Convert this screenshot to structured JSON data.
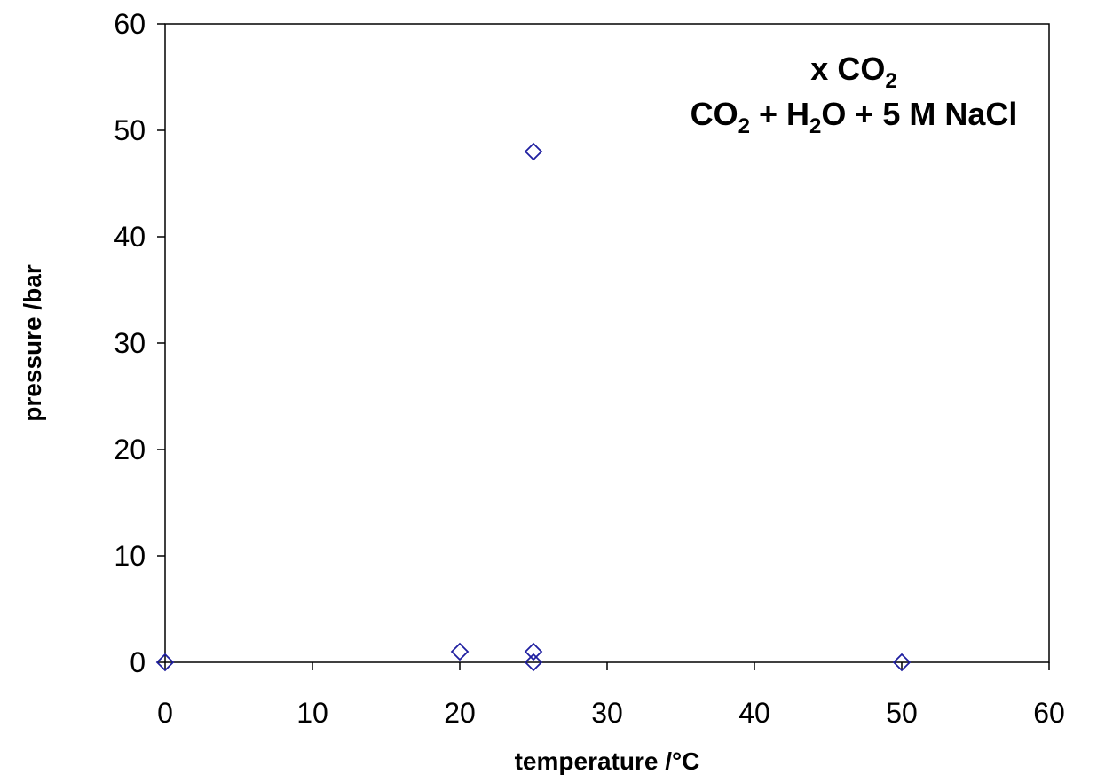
{
  "chart_data": {
    "type": "scatter",
    "xlabel": "temperature /°C",
    "ylabel": "pressure /bar",
    "xlim": [
      0,
      60
    ],
    "ylim": [
      0,
      60
    ],
    "xticks": [
      0,
      10,
      20,
      30,
      40,
      50,
      60
    ],
    "yticks": [
      0,
      10,
      20,
      30,
      40,
      50,
      60
    ],
    "grid": false,
    "marker": "open-diamond",
    "marker_color": "#1f1fa0",
    "annotation": {
      "line1": {
        "main": "x CO",
        "sub": "2",
        "tail": ""
      },
      "line2": [
        {
          "text": "CO",
          "sub": false
        },
        {
          "text": "2",
          "sub": true
        },
        {
          "text": " + H",
          "sub": false
        },
        {
          "text": "2",
          "sub": true
        },
        {
          "text": "O + 5 M NaCl",
          "sub": false
        }
      ]
    },
    "series": [
      {
        "points": [
          {
            "x": 0,
            "y": 0
          },
          {
            "x": 20,
            "y": 1
          },
          {
            "x": 25,
            "y": 48
          },
          {
            "x": 25,
            "y": 1
          },
          {
            "x": 25,
            "y": 0
          },
          {
            "x": 50,
            "y": 0
          }
        ]
      }
    ]
  }
}
